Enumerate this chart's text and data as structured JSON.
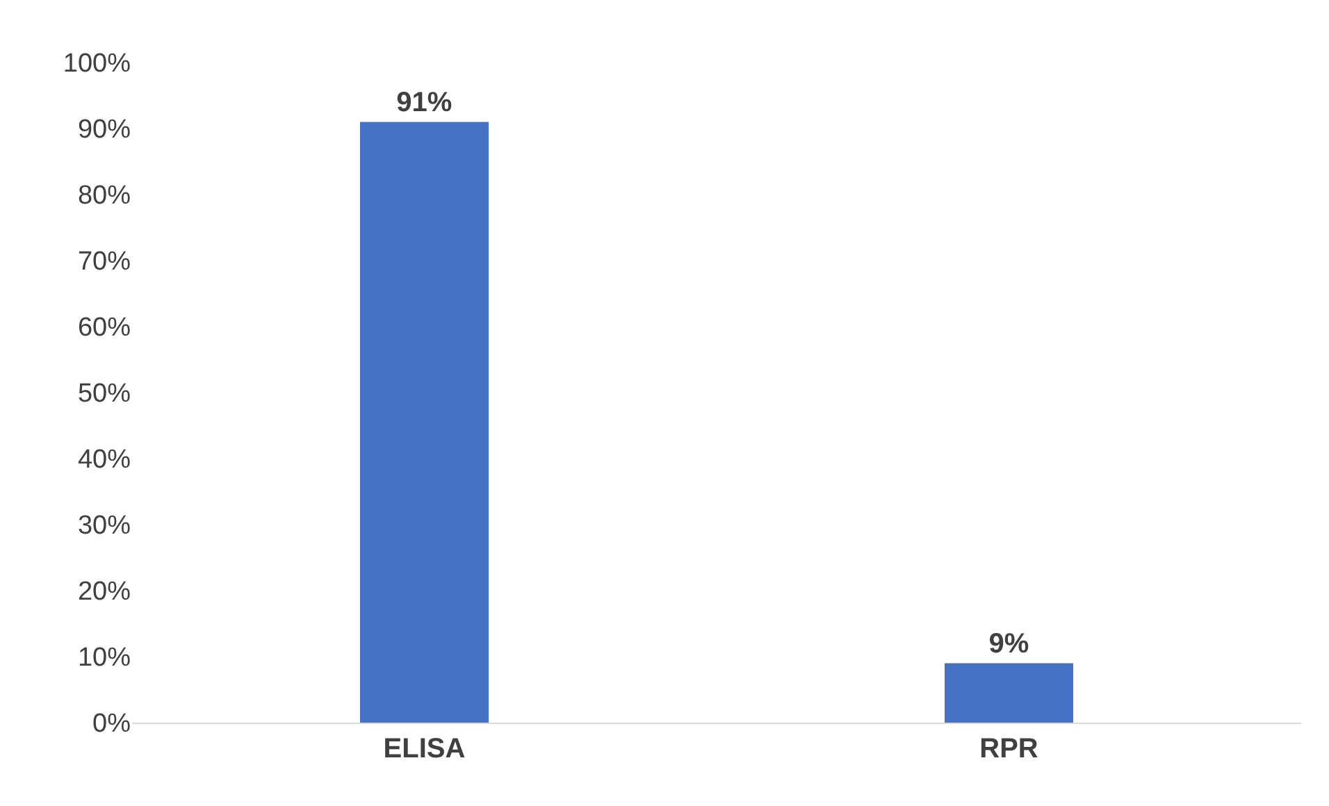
{
  "chart_data": {
    "type": "bar",
    "categories": [
      "ELISA",
      "RPR"
    ],
    "values": [
      91,
      9
    ],
    "color": "#4472c4",
    "ylim": [
      0,
      100
    ],
    "yticks": [
      {
        "value": 0,
        "label": "0%"
      },
      {
        "value": 10,
        "label": "10%"
      },
      {
        "value": 20,
        "label": "20%"
      },
      {
        "value": 30,
        "label": "30%"
      },
      {
        "value": 40,
        "label": "40%"
      },
      {
        "value": 50,
        "label": "50%"
      },
      {
        "value": 60,
        "label": "60%"
      },
      {
        "value": 70,
        "label": "70%"
      },
      {
        "value": 80,
        "label": "80%"
      },
      {
        "value": 90,
        "label": "90%"
      },
      {
        "value": 100,
        "label": "100%"
      }
    ],
    "value_labels": [
      "91%",
      "9%"
    ]
  }
}
